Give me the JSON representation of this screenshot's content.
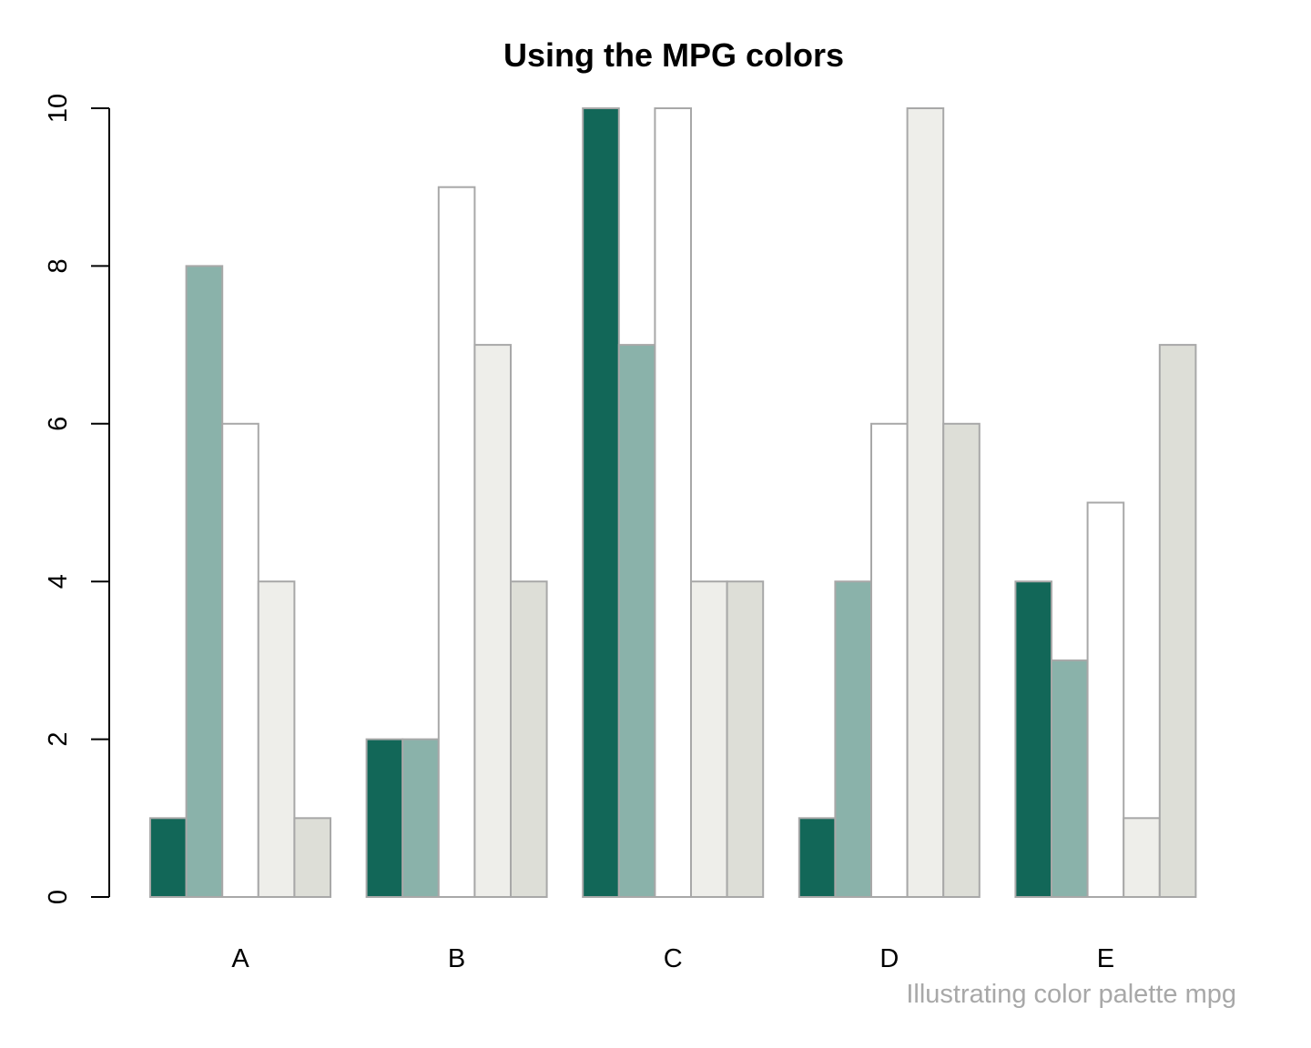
{
  "chart_data": {
    "type": "bar",
    "title": "Using the MPG colors",
    "caption": "Illustrating color palette mpg",
    "xlabel": "",
    "ylabel": "",
    "ylim": [
      0,
      10
    ],
    "yticks": [
      "0",
      "2",
      "4",
      "6",
      "8",
      "10"
    ],
    "grid": false,
    "categories": [
      "A",
      "B",
      "C",
      "D",
      "E"
    ],
    "series_colors": [
      "#126758",
      "#8AB2AA",
      "#FFFFFF",
      "#EEEEEA",
      "#DDDED7"
    ],
    "border_color": "#A8A8A8",
    "series": [
      {
        "values": [
          1,
          2,
          10,
          1,
          4
        ]
      },
      {
        "values": [
          8,
          2,
          7,
          4,
          3
        ]
      },
      {
        "values": [
          6,
          9,
          10,
          6,
          5
        ]
      },
      {
        "values": [
          4,
          7,
          4,
          10,
          1
        ]
      },
      {
        "values": [
          1,
          4,
          4,
          6,
          7
        ]
      }
    ]
  }
}
